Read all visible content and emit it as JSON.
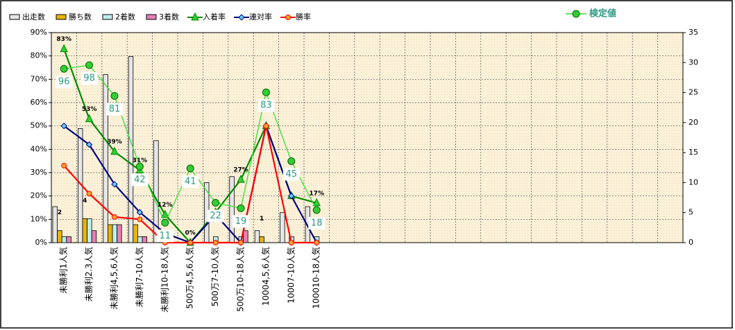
{
  "chart_data": {
    "type": "bar-line",
    "categories": [
      "未勝利1人気",
      "未勝利2.3人気",
      "未勝利4,5,6人気",
      "未勝利7-10人気",
      "未勝利10-18人気",
      "500万4,5,6人気",
      "500万7-10人気",
      "500万10-18人気",
      "10004,5,6人気",
      "10007-10人気",
      "100010-18人気",
      null,
      null,
      null,
      null,
      null,
      null,
      null,
      null,
      null,
      null,
      null,
      null,
      null,
      null
    ],
    "series": [
      {
        "name": "出走数",
        "kind": "bar",
        "axis": "y2",
        "color": "#e6e6e6",
        "values": [
          6,
          19,
          28,
          31,
          17,
          0,
          10,
          11,
          2,
          5,
          6,
          null,
          null,
          null,
          null,
          null,
          null,
          null,
          null,
          null,
          null,
          null,
          null,
          null,
          null
        ]
      },
      {
        "name": "勝ち数",
        "kind": "bar",
        "axis": "y2",
        "color": "#e8b400",
        "values": [
          2,
          4,
          3,
          3,
          0,
          0,
          0,
          0,
          1,
          0,
          0,
          null,
          null,
          null,
          null,
          null,
          null,
          null,
          null,
          null,
          null,
          null,
          null,
          null,
          null
        ],
        "value_labels": [
          "2",
          "4",
          null,
          null,
          null,
          null,
          null,
          null,
          "1",
          null,
          null,
          null,
          null,
          null,
          null,
          null,
          null,
          null,
          null,
          null,
          null,
          null,
          null,
          null,
          null
        ]
      },
      {
        "name": "2着数",
        "kind": "bar",
        "axis": "y2",
        "color": "#bdeeee",
        "values": [
          1,
          4,
          3,
          1,
          0,
          0,
          1,
          1,
          0,
          1,
          1,
          null,
          null,
          null,
          null,
          null,
          null,
          null,
          null,
          null,
          null,
          null,
          null,
          null,
          null
        ]
      },
      {
        "name": "3着数",
        "kind": "bar",
        "axis": "y2",
        "color": "#e57fb4",
        "values": [
          1,
          2,
          3,
          1,
          0,
          0,
          0,
          2,
          0,
          0,
          0,
          null,
          null,
          null,
          null,
          null,
          null,
          null,
          null,
          null,
          null,
          null,
          null,
          null,
          null
        ]
      },
      {
        "name": "入着率",
        "kind": "line",
        "marker": "triangle",
        "color": "#008a00",
        "marker_color": "#33cc33",
        "values": [
          83,
          53,
          39,
          31,
          12,
          0,
          13,
          27,
          50,
          20,
          17,
          null,
          null,
          null,
          null,
          null,
          null,
          null,
          null,
          null,
          null,
          null,
          null,
          null,
          null
        ],
        "value_labels": [
          "83%",
          "53%",
          "39%",
          "31%",
          "12%",
          "0%",
          null,
          "27%",
          null,
          null,
          "17%",
          null,
          null,
          null,
          null,
          null,
          null,
          null,
          null,
          null,
          null,
          null,
          null,
          null,
          null
        ]
      },
      {
        "name": "連対率",
        "kind": "line",
        "marker": "diamond",
        "color": "#000080",
        "marker_color": "#66ccff",
        "values": [
          50,
          42,
          25,
          13,
          4,
          0,
          12,
          0,
          50,
          20,
          0,
          null,
          null,
          null,
          null,
          null,
          null,
          null,
          null,
          null,
          null,
          null,
          null,
          null,
          null
        ]
      },
      {
        "name": "勝率",
        "kind": "line",
        "marker": "circle",
        "color": "#ff0000",
        "marker_color": "#f0a030",
        "values": [
          33,
          21,
          11,
          10,
          0,
          0,
          0,
          0,
          50,
          0,
          0,
          null,
          null,
          null,
          null,
          null,
          null,
          null,
          null,
          null,
          null,
          null,
          null,
          null,
          null
        ]
      },
      {
        "name": "検定値",
        "kind": "line",
        "axis": "y3",
        "marker": "circle",
        "color": "#33dd33",
        "marker_color": "#33cc33",
        "values": [
          96,
          98,
          81,
          42,
          11,
          41,
          22,
          19,
          83,
          45,
          18,
          null,
          null,
          null,
          null,
          null,
          null,
          null,
          null,
          null,
          null,
          null,
          null,
          null,
          null
        ]
      }
    ],
    "ylim": [
      0,
      90
    ],
    "yticks": [
      {
        "value": 0,
        "label": "0%"
      },
      {
        "value": 10,
        "label": "10%"
      },
      {
        "value": 20,
        "label": "20%"
      },
      {
        "value": 30,
        "label": "30%"
      },
      {
        "value": 40,
        "label": "40%"
      },
      {
        "value": 50,
        "label": "50%"
      },
      {
        "value": 60,
        "label": "60%"
      },
      {
        "value": 70,
        "label": "70%"
      },
      {
        "value": 80,
        "label": "80%"
      },
      {
        "value": 90,
        "label": "90%"
      }
    ],
    "y2lim": [
      0,
      35
    ],
    "y2ticks": [
      0,
      5,
      10,
      15,
      20,
      25,
      30,
      35
    ],
    "y3lim": [
      0,
      116
    ],
    "grid": true
  }
}
